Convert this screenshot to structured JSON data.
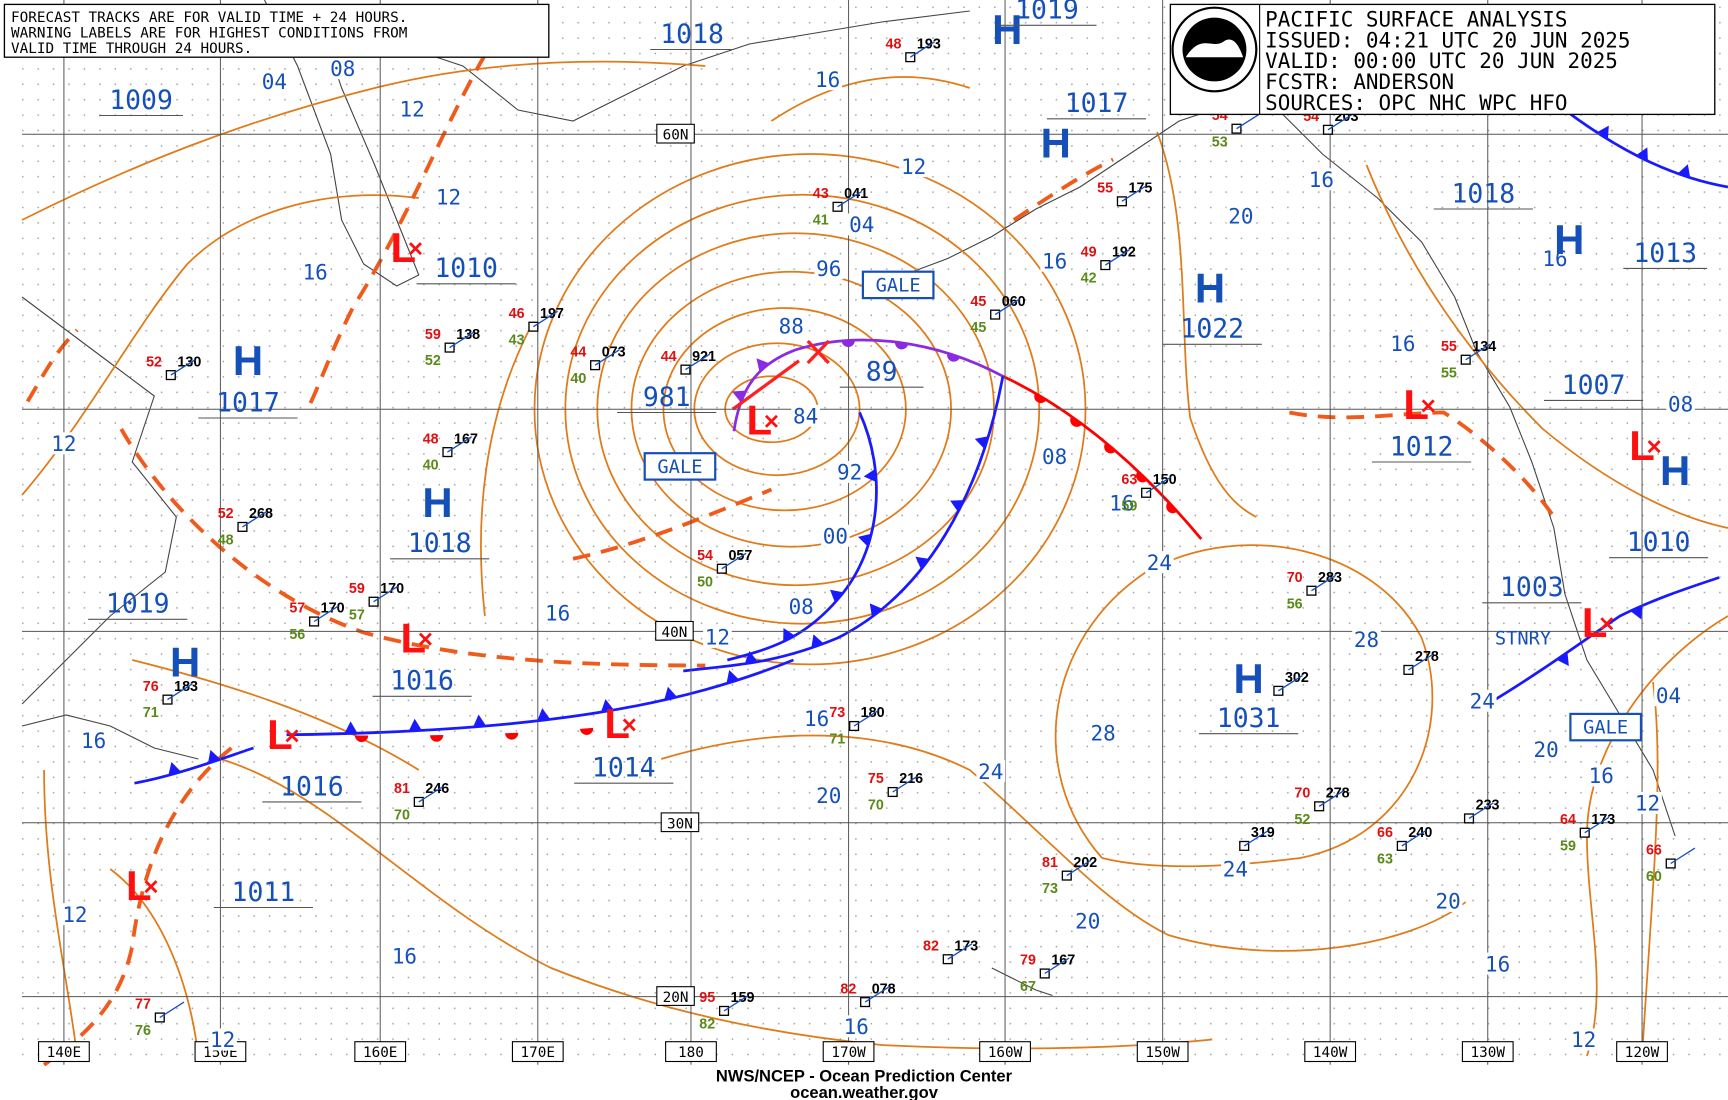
{
  "header": {
    "title": "PACIFIC SURFACE ANALYSIS",
    "lines": [
      "ISSUED:  04:21 UTC 20 JUN 2025",
      "VALID:   00:00 UTC 20 JUN 2025",
      "FCSTR:   ANDERSON",
      "SOURCES:  OPC NHC WPC HFO"
    ]
  },
  "note": {
    "lines": [
      "FORECAST TRACKS ARE FOR VALID TIME + 24 HOURS.",
      "WARNING LABELS ARE FOR HIGHEST CONDITIONS FROM",
      "VALID TIME THROUGH 24 HOURS."
    ]
  },
  "footer": {
    "agency": "NWS/NCEP - Ocean Prediction Center",
    "url": "ocean.weather.gov"
  },
  "grid": {
    "longitudes": [
      "140E",
      "150E",
      "160E",
      "170E",
      "180",
      "170W",
      "160W",
      "150W",
      "140W",
      "130W",
      "120W"
    ],
    "latitudes": [
      "60N",
      "40N",
      "30N",
      "20N"
    ]
  },
  "pressure_centers": [
    {
      "symbol": "H",
      "value": "1017"
    },
    {
      "symbol": "H",
      "value": "1018"
    },
    {
      "symbol": "H",
      "value": "1019"
    },
    {
      "symbol": "H",
      "value": "1022"
    },
    {
      "symbol": "H",
      "value": "1031"
    },
    {
      "symbol": "H",
      "value": "1017"
    },
    {
      "symbol": "H",
      "value": "1019"
    },
    {
      "symbol": "H",
      "value": "1018"
    },
    {
      "symbol": "H",
      "value": "1010"
    },
    {
      "symbol": "L",
      "value": "1010"
    },
    {
      "symbol": "L",
      "value": "981"
    },
    {
      "symbol": "L",
      "value": "1016"
    },
    {
      "symbol": "L",
      "value": "1014"
    },
    {
      "symbol": "L",
      "value": "1016"
    },
    {
      "symbol": "L",
      "value": "1011"
    },
    {
      "symbol": "L",
      "value": "1012"
    },
    {
      "symbol": "L",
      "value": "1003"
    },
    {
      "symbol": "L",
      "value": "1007"
    }
  ],
  "pressure_values": [
    "1009",
    "1018",
    "89",
    "1013"
  ],
  "isobar_labels": [
    "04",
    "08",
    "12",
    "12",
    "16",
    "12",
    "16",
    "12",
    "12",
    "16",
    "16",
    "12",
    "08",
    "00",
    "92",
    "84",
    "88",
    "96",
    "04",
    "12",
    "16",
    "16",
    "08",
    "16",
    "24",
    "20",
    "16",
    "16",
    "16",
    "08",
    "28",
    "28",
    "24",
    "24",
    "04",
    "20",
    "16",
    "12",
    "24",
    "20",
    "20",
    "16",
    "12",
    "16",
    "20",
    "16"
  ],
  "warnings": [
    "GALE",
    "GALE",
    "GALE"
  ],
  "front_labels": [
    "STNRY"
  ],
  "stations": [
    {
      "temp": "52",
      "pressure": "130"
    },
    {
      "temp": "76",
      "dew": "71",
      "pressure": "183"
    },
    {
      "temp": "52",
      "dew": "48",
      "pressure": "268"
    },
    {
      "temp": "57",
      "dew": "56",
      "pressure": "170"
    },
    {
      "temp": "59",
      "dew": "57",
      "pressure": "170"
    },
    {
      "temp": "59",
      "dew": "52",
      "pressure": "138"
    },
    {
      "temp": "48",
      "dew": "40",
      "pressure": "167"
    },
    {
      "temp": "46",
      "dew": "43",
      "pressure": "197"
    },
    {
      "temp": "44",
      "dew": "40",
      "pressure": "073"
    },
    {
      "temp": "54",
      "dew": "50",
      "pressure": "057"
    },
    {
      "temp": "48",
      "pressure": "193"
    },
    {
      "temp": "49",
      "dew": "42",
      "pressure": "192"
    },
    {
      "temp": "55",
      "pressure": "175"
    },
    {
      "temp": "45",
      "dew": "45",
      "pressure": "060"
    },
    {
      "temp": "54",
      "dew": "53"
    },
    {
      "temp": "54",
      "pressure": "203"
    },
    {
      "temp": "70",
      "dew": "56",
      "pressure": "283"
    },
    {
      "pressure": "302"
    },
    {
      "pressure": "278"
    },
    {
      "temp": "55",
      "dew": "55",
      "pressure": "134"
    },
    {
      "temp": "64",
      "dew": "59",
      "pressure": "173"
    },
    {
      "temp": "66",
      "dew": "60"
    },
    {
      "pressure": "233"
    },
    {
      "temp": "66",
      "dew": "63",
      "pressure": "240"
    },
    {
      "pressure": "319"
    },
    {
      "temp": "70",
      "dew": "52",
      "pressure": "278"
    },
    {
      "temp": "81",
      "dew": "73",
      "pressure": "202"
    },
    {
      "temp": "79",
      "dew": "67",
      "pressure": "167"
    },
    {
      "temp": "82",
      "pressure": "173"
    },
    {
      "temp": "82",
      "pressure": "078"
    },
    {
      "temp": "95",
      "dew": "82",
      "pressure": "159"
    },
    {
      "temp": "75",
      "dew": "70",
      "pressure": "216"
    },
    {
      "temp": "73",
      "dew": "71",
      "pressure": "180"
    },
    {
      "temp": "81",
      "dew": "70",
      "pressure": "246"
    },
    {
      "temp": "77",
      "dew": "76"
    },
    {
      "temp": "63",
      "dew": "59",
      "pressure": "150"
    },
    {
      "temp": "43",
      "dew": "41",
      "pressure": "041"
    },
    {
      "temp": "44",
      "pressure": "921"
    }
  ]
}
